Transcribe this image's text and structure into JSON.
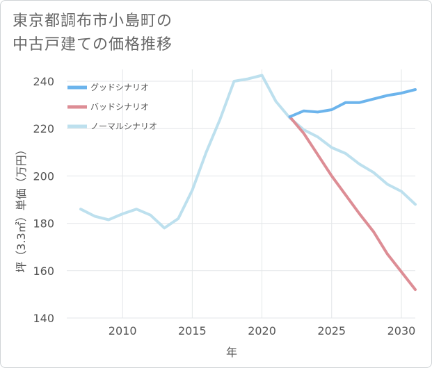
{
  "chart_data": {
    "type": "line",
    "title_lines": [
      "東京都調布市小島町の",
      "中古戸建ての価格推移"
    ],
    "xlabel": "年",
    "ylabel": "坪（3.3㎡）単価（万円）",
    "xlim": [
      2006,
      2031
    ],
    "ylim": [
      140,
      245
    ],
    "xticks": [
      2010,
      2015,
      2020,
      2025,
      2030
    ],
    "yticks": [
      140,
      160,
      180,
      200,
      220,
      240
    ],
    "grid": true,
    "legend_position": "top-left",
    "series": [
      {
        "name": "グッドシナリオ",
        "color": "#6cb4ec",
        "x": [
          2022,
          2023,
          2024,
          2025,
          2026,
          2027,
          2028,
          2029,
          2030,
          2031
        ],
        "y": [
          225,
          227.5,
          227,
          228,
          231,
          231,
          232.5,
          234,
          235,
          236.5
        ]
      },
      {
        "name": "バッドシナリオ",
        "color": "#dd8d95",
        "x": [
          2022,
          2023,
          2024,
          2025,
          2026,
          2027,
          2028,
          2029,
          2030,
          2031
        ],
        "y": [
          225,
          218,
          209,
          200,
          192,
          184,
          176.5,
          167,
          159.5,
          152
        ]
      },
      {
        "name": "ノーマルシナリオ",
        "color": "#bde0ee",
        "x": [
          2007,
          2008,
          2009,
          2010,
          2011,
          2012,
          2013,
          2014,
          2015,
          2016,
          2017,
          2018,
          2019,
          2020,
          2021,
          2022,
          2023,
          2024,
          2025,
          2026,
          2027,
          2028,
          2029,
          2030,
          2031
        ],
        "y": [
          186,
          183,
          181.5,
          184,
          186,
          183.5,
          178,
          182,
          194,
          210,
          224,
          240,
          241,
          242.5,
          231.5,
          224.5,
          219.5,
          216.5,
          212,
          209.5,
          205,
          201.5,
          196.5,
          193.5,
          188
        ]
      }
    ]
  }
}
